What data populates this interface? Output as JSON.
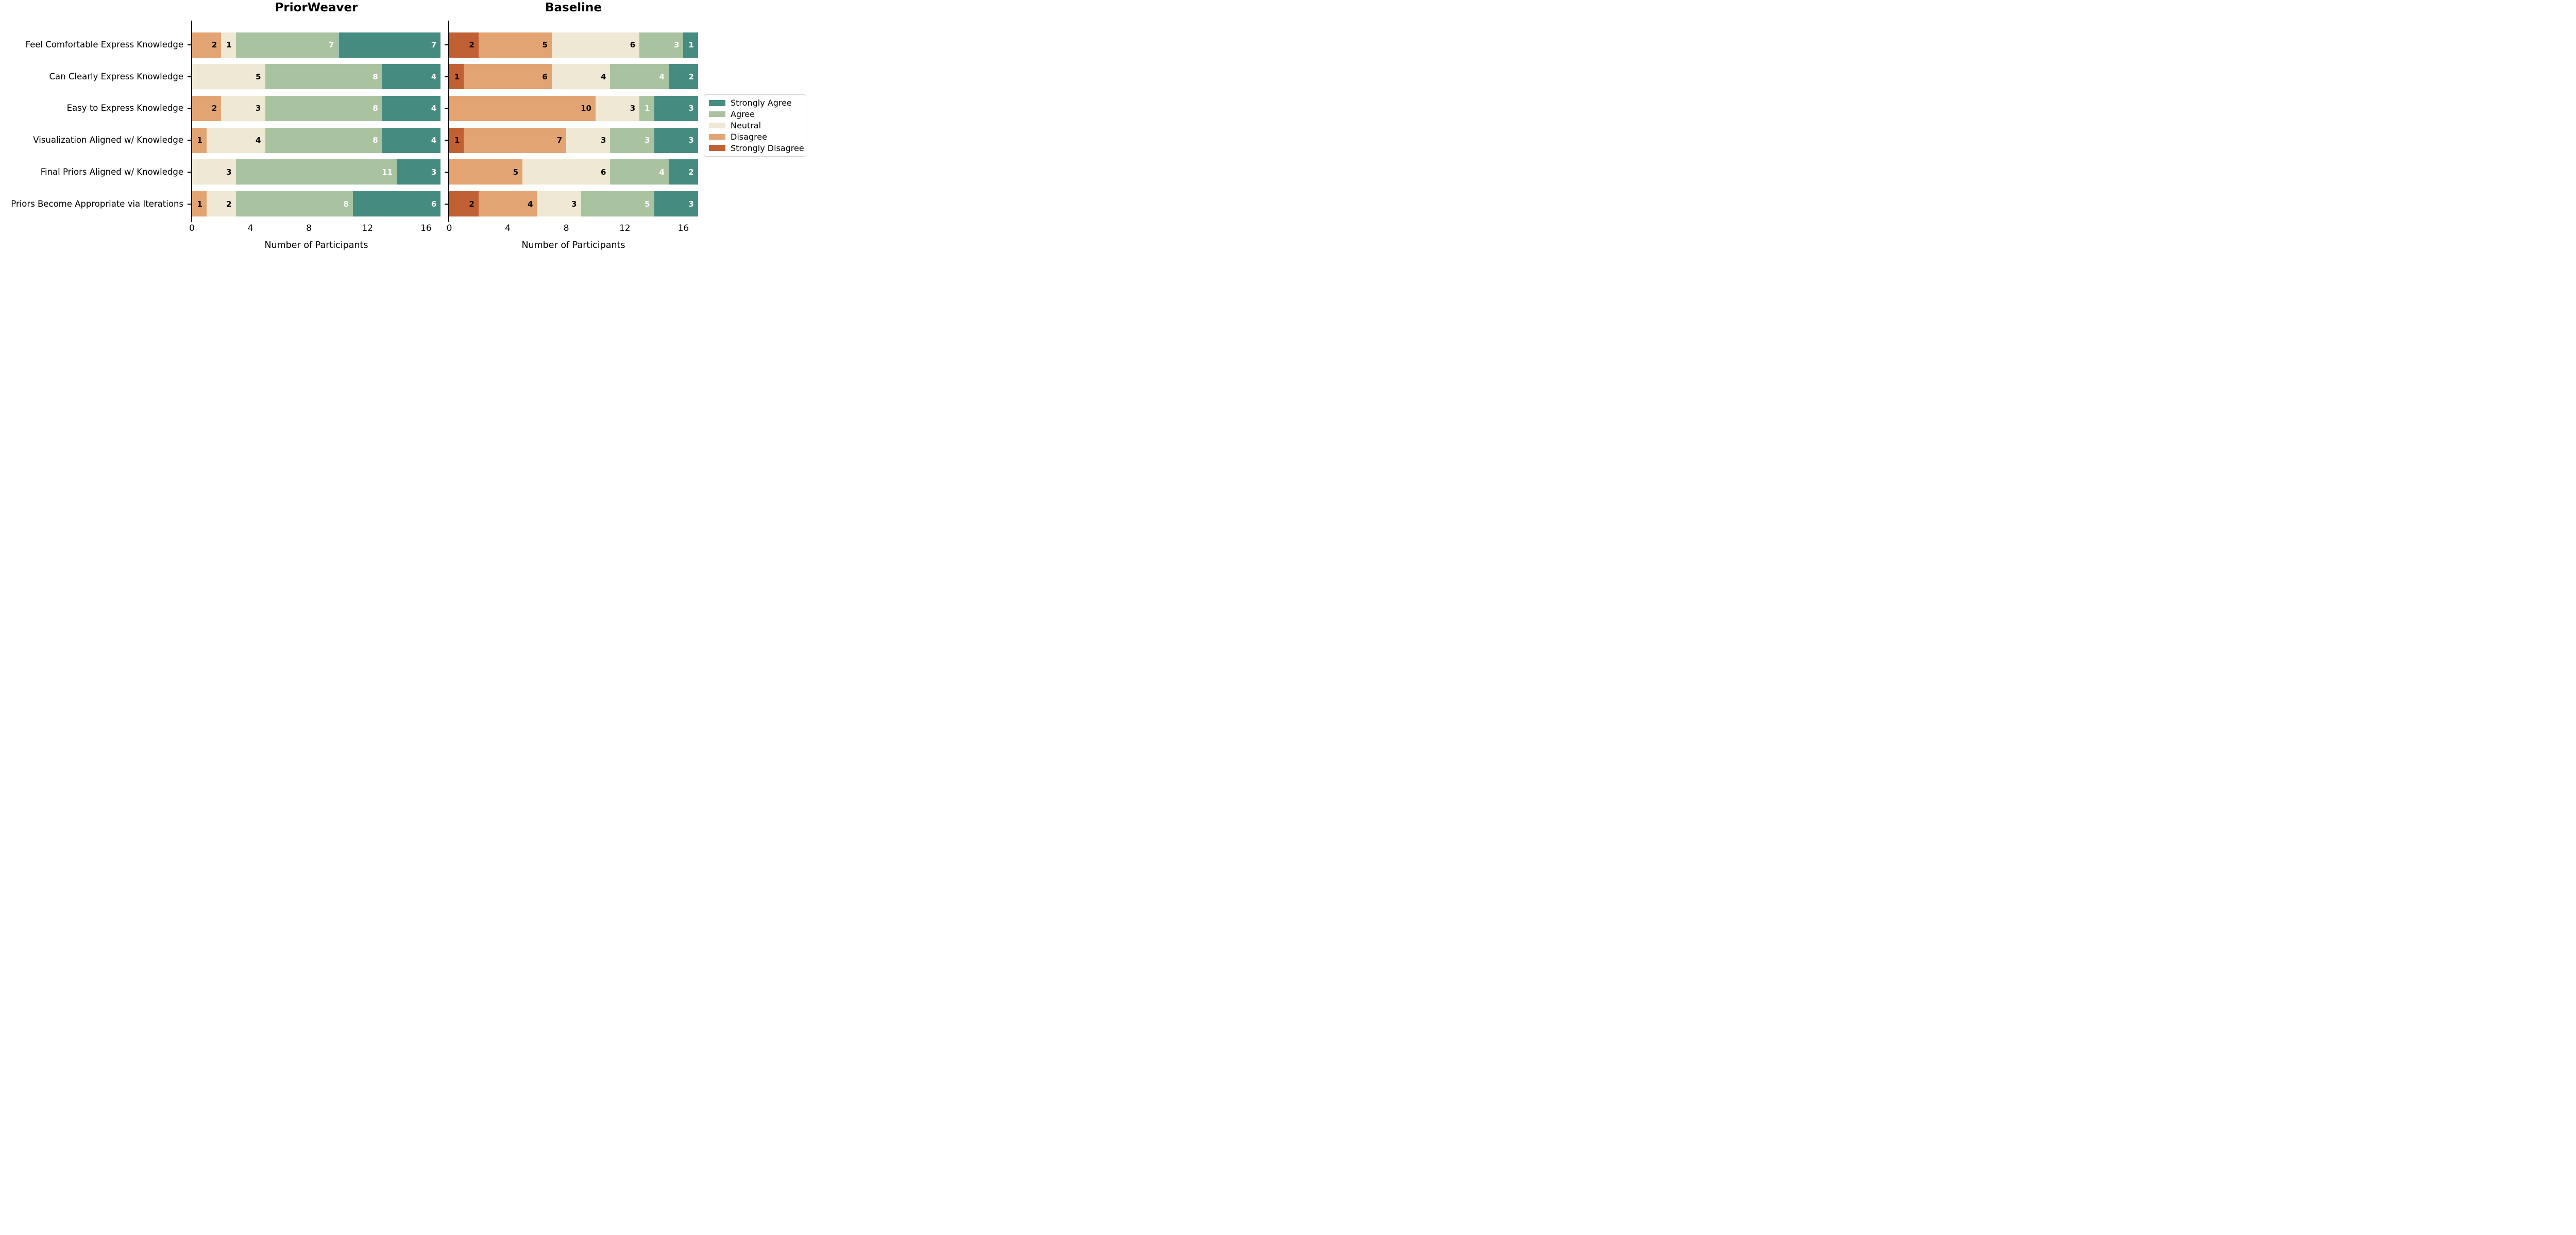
{
  "chart_data": {
    "type": "bar",
    "orientation": "horizontal",
    "stacked": true,
    "categories": [
      "Feel Comfortable Express Knowledge",
      "Can Clearly Express Knowledge",
      "Easy to Express Knowledge",
      "Visualization Aligned w/ Knowledge",
      "Final Priors Aligned w/ Knowledge",
      "Priors Become Appropriate via Iterations"
    ],
    "panels": [
      {
        "title": "PriorWeaver",
        "series": [
          {
            "name": "Strongly Disagree",
            "values": [
              0,
              0,
              0,
              0,
              0,
              0
            ]
          },
          {
            "name": "Disagree",
            "values": [
              2,
              0,
              2,
              1,
              0,
              1
            ]
          },
          {
            "name": "Neutral",
            "values": [
              1,
              5,
              3,
              4,
              3,
              2
            ]
          },
          {
            "name": "Agree",
            "values": [
              7,
              8,
              8,
              8,
              11,
              8
            ]
          },
          {
            "name": "Strongly Agree",
            "values": [
              7,
              4,
              4,
              4,
              3,
              6
            ]
          }
        ]
      },
      {
        "title": "Baseline",
        "series": [
          {
            "name": "Strongly Disagree",
            "values": [
              2,
              1,
              0,
              1,
              0,
              2
            ]
          },
          {
            "name": "Disagree",
            "values": [
              5,
              6,
              10,
              7,
              5,
              4
            ]
          },
          {
            "name": "Neutral",
            "values": [
              6,
              4,
              3,
              3,
              6,
              3
            ]
          },
          {
            "name": "Agree",
            "values": [
              3,
              4,
              1,
              3,
              4,
              5
            ]
          },
          {
            "name": "Strongly Agree",
            "values": [
              1,
              2,
              3,
              3,
              2,
              3
            ]
          }
        ]
      }
    ],
    "stack_order": [
      "Strongly Disagree",
      "Disagree",
      "Neutral",
      "Agree",
      "Strongly Agree"
    ],
    "legend": {
      "position": "center right",
      "entries": [
        "Strongly Agree",
        "Agree",
        "Neutral",
        "Disagree",
        "Strongly Disagree"
      ]
    },
    "xlabel": "Number of Participants",
    "x_ticks": [
      0,
      4,
      8,
      12,
      16
    ],
    "xlim": [
      0,
      17
    ],
    "row_total": 17,
    "grid": false,
    "colors": {
      "Strongly Agree": "#468b80",
      "Agree": "#a9c3a1",
      "Neutral": "#eee8d4",
      "Disagree": "#e2a472",
      "Strongly Disagree": "#c15f35"
    },
    "value_label_colors": {
      "Strongly Agree": "#ffffff",
      "Agree": "#ffffff",
      "Neutral": "#000000",
      "Disagree": "#000000",
      "Strongly Disagree": "#000000"
    },
    "axis_color": "#000000",
    "legend_border_color": "#d4d4d4"
  }
}
